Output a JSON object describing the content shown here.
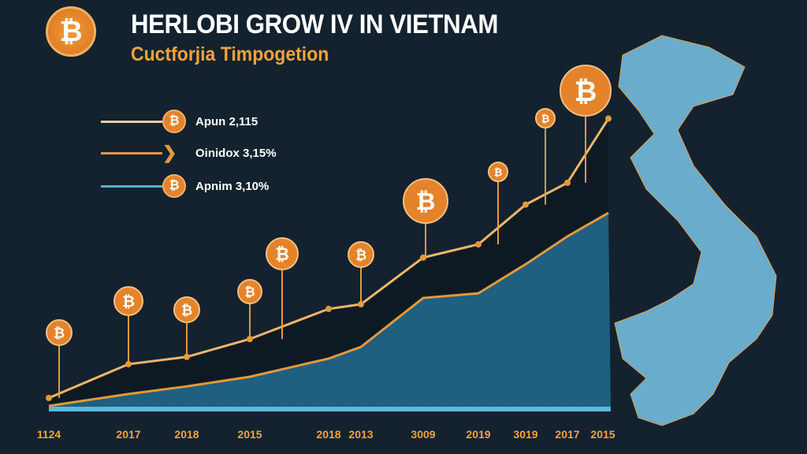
{
  "header": {
    "logo": "₿",
    "title": "HERLOBI GROW IV IN VIETNAM",
    "subtitle": "Cuctforjia Timpogetion"
  },
  "legend": [
    {
      "label": "Apun 2,115",
      "color": "#f1cf9a",
      "icon": "bitcoin-icon"
    },
    {
      "label": "Oinidox 3,15%",
      "color": "#e39a3a",
      "icon": "arrow-icon"
    },
    {
      "label": "Apnim 3,10%",
      "color": "#5aaed0",
      "icon": "bitcoin-icon"
    }
  ],
  "chart_data": {
    "type": "area",
    "title": "HERLOBI GROW IV IN VIETNAM",
    "subtitle": "Cuctforjia Timpogetion",
    "categories": [
      "1124",
      "2017",
      "2018",
      "2015",
      "2018",
      "2013",
      "3009",
      "2019",
      "3019",
      "2017",
      "2015"
    ],
    "series": [
      {
        "name": "Apun 2,115",
        "values": [
          3.6,
          13.8,
          16,
          21.4,
          30.5,
          31.9,
          46,
          50,
          62,
          68.6,
          88
        ],
        "color": "#f1b56a"
      },
      {
        "name": "Apnim 3,10%",
        "values": [
          1.2,
          4.8,
          7.1,
          10,
          15.5,
          19,
          33.8,
          35.2,
          44,
          52.4,
          59.5
        ],
        "color": "#e39a3a"
      }
    ],
    "ylim": [
      0,
      100
    ],
    "grid": false,
    "legend_position": "top-left",
    "colors": {
      "background": "#13222e",
      "area": "#1f5f7f",
      "map": "#6aaccc",
      "accent": "#e4832a"
    }
  }
}
